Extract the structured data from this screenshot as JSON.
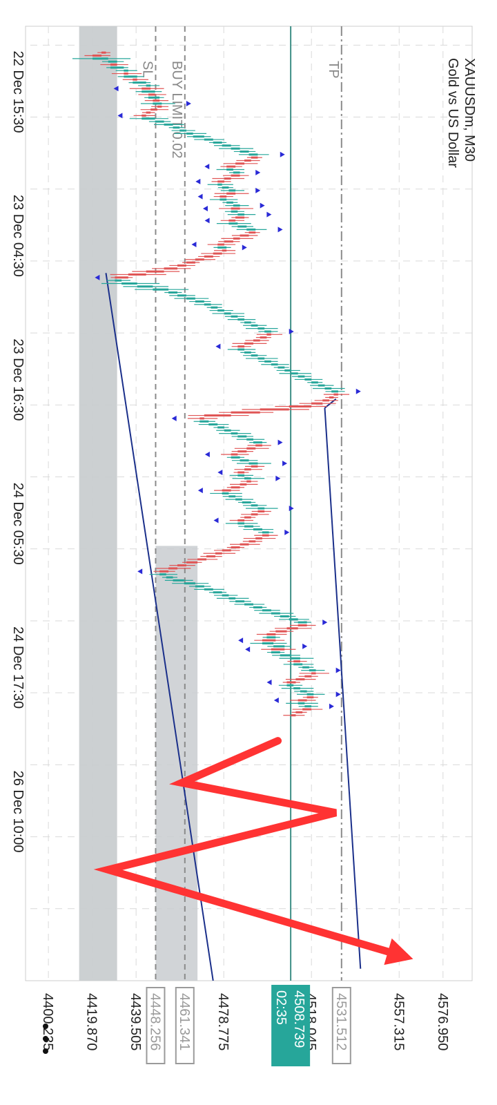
{
  "colors": {
    "bull": "#26a69a",
    "bear": "#e05555",
    "grid": "#d9d9d9",
    "text": "#222222",
    "level_line": "#8a8a8a",
    "price_line": "#3e8f86",
    "trend": "#1a2f8a",
    "arrow": "#ff3333",
    "zone": "#c9cdd0",
    "fractal": "#2a2ad6"
  },
  "chart_data": {
    "type": "candlestick",
    "title": "XAUUSDm, M30",
    "subtitle": "Gold vs US Dollar",
    "ylim": [
      4390,
      4590
    ],
    "y_ticks": [
      "4400.235",
      "4419.870",
      "4439.505",
      "4478.775",
      "4518.045",
      "4557.315",
      "4576.950"
    ],
    "x_ticks": [
      {
        "bar": 22,
        "label": "22 Dec 15:30"
      },
      {
        "bar": 70,
        "label": "23 Dec 04:30"
      },
      {
        "bar": 118,
        "label": "23 Dec 16:30"
      },
      {
        "bar": 166,
        "label": "24 Dec 05:30"
      },
      {
        "bar": 214,
        "label": "24 Dec 17:30"
      },
      {
        "bar": 262,
        "label": "26 Dec 10:00"
      }
    ],
    "bars_total": 310,
    "levels": [
      {
        "name": "TP",
        "label": "TP",
        "price": 4531.512,
        "price_label": "4531.512",
        "style": "dashdot"
      },
      {
        "name": "BUY LIMIT",
        "label": "BUY LIMIT 0.02",
        "price": 4461.341,
        "price_label": "4461.341",
        "style": "dash"
      },
      {
        "name": "SL",
        "label": "SL",
        "price": 4448.256,
        "price_label": "4448.256",
        "style": "dash"
      }
    ],
    "current": {
      "price": 4508.739,
      "price_label": "4508.739",
      "countdown": "02:35"
    },
    "close": [
      4424,
      4420,
      4427,
      4431,
      4428,
      4434,
      4436,
      4434,
      4440,
      4438,
      4444,
      4446,
      4442,
      4448,
      4445,
      4450,
      4447,
      4451,
      4449,
      4446,
      4444,
      4442,
      4448,
      4452,
      4456,
      4459,
      4462,
      4465,
      4470,
      4474,
      4478,
      4482,
      4486,
      4490,
      4494,
      4491,
      4488,
      4484,
      4480,
      4483,
      4486,
      4482,
      4479,
      4476,
      4478,
      4481,
      4484,
      4480,
      4477,
      4480,
      4483,
      4486,
      4482,
      4485,
      4488,
      4484,
      4481,
      4485,
      4489,
      4493,
      4490,
      4486,
      4483,
      4479,
      4476,
      4480,
      4478,
      4474,
      4470,
      4466,
      4462,
      4458,
      4452,
      4444,
      4436,
      4430,
      4433,
      4440,
      4447,
      4454,
      4458,
      4462,
      4466,
      4470,
      4473,
      4476,
      4479,
      4482,
      4485,
      4488,
      4491,
      4494,
      4497,
      4500,
      4498,
      4495,
      4492,
      4488,
      4485,
      4488,
      4491,
      4494,
      4497,
      4500,
      4503,
      4506,
      4509,
      4512,
      4515,
      4518,
      4521,
      4524,
      4527,
      4530,
      4528,
      4526,
      4523,
      4518,
      4508,
      4495,
      4482,
      4470,
      4468,
      4472,
      4476,
      4479,
      4482,
      4485,
      4489,
      4492,
      4496,
      4493,
      4489,
      4485,
      4482,
      4486,
      4490,
      4494,
      4491,
      4488,
      4485,
      4488,
      4491,
      4489,
      4486,
      4482,
      4478,
      4481,
      4484,
      4487,
      4491,
      4494,
      4497,
      4494,
      4491,
      4488,
      4485,
      4488,
      4492,
      4496,
      4499,
      4496,
      4493,
      4490,
      4486,
      4482,
      4478,
      4475,
      4471,
      4467,
      4462,
      4458,
      4454,
      4450,
      4453,
      4456,
      4461,
      4466,
      4470,
      4474,
      4478,
      4481,
      4484,
      4488,
      4492,
      4496,
      4500,
      4504,
      4508,
      4512,
      4516,
      4512,
      4507,
      4502,
      4498,
      4502,
      4496,
      4501,
      4506,
      4500,
      4504,
      4509,
      4513,
      4510,
      4514,
      4517,
      4520,
      4518,
      4515,
      4511,
      4507,
      4510,
      4513,
      4516,
      4519,
      4516,
      4512,
      4515,
      4518,
      4514,
      4511,
      4509
    ],
    "trend_lines": [
      {
        "from": {
          "bar": 74,
          "price": 4426
        },
        "to": {
          "bar": 310,
          "price": 4474
        }
      },
      {
        "from": {
          "bar": 116,
          "price": 4529
        },
        "to": {
          "bar": 119,
          "price": 4524
        }
      },
      {
        "from": {
          "bar": 119,
          "price": 4524
        },
        "to": {
          "bar": 306,
          "price": 4540
        }
      }
    ],
    "zones": [
      {
        "from_bar": 0,
        "to_bar": 310,
        "low": 4414,
        "high": 4431
      },
      {
        "from_bar": 165,
        "to_bar": 310,
        "low": 4448.256,
        "high": 4467
      }
    ],
    "projection_arrow": [
      {
        "bar": 230,
        "price": 4503
      },
      {
        "bar": 244,
        "price": 4460
      },
      {
        "bar": 254,
        "price": 4529
      },
      {
        "bar": 273,
        "price": 4427
      },
      {
        "bar": 302,
        "price": 4560
      }
    ]
  }
}
